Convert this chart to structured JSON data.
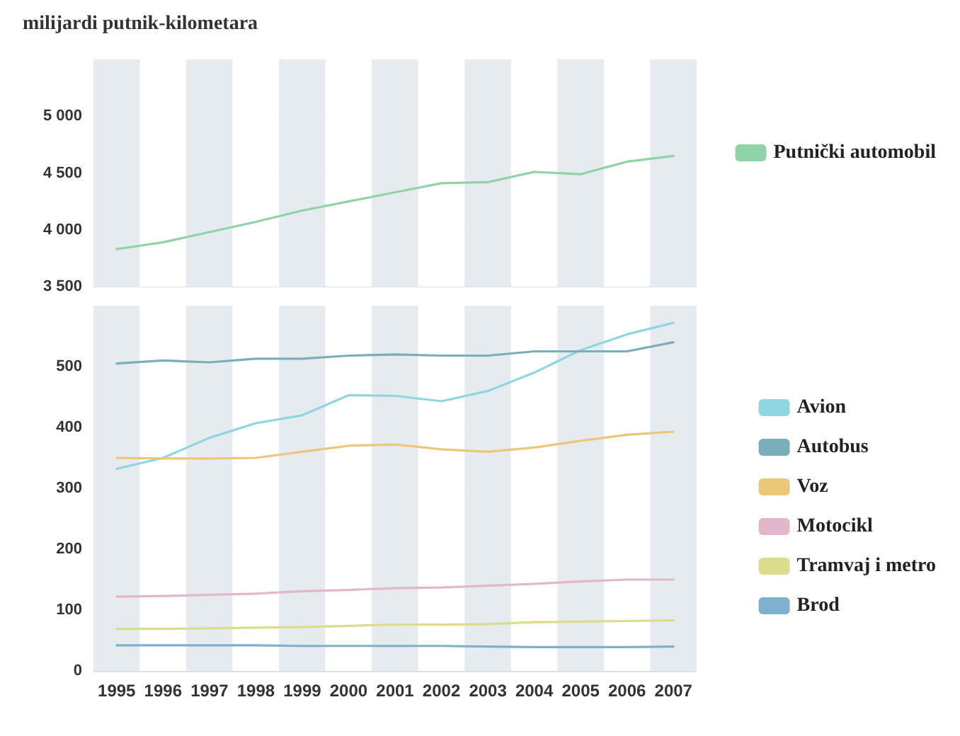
{
  "chart_data": [
    {
      "type": "line",
      "ylabel": "milijardi putnik-kilometara",
      "categories": [
        "1995",
        "1996",
        "1997",
        "1998",
        "1999",
        "2000",
        "2001",
        "2002",
        "2003",
        "2004",
        "2005",
        "2006",
        "2007"
      ],
      "series": [
        {
          "name": "Putnički automobil",
          "color": "#8fd4a8",
          "values": [
            3830,
            3890,
            3980,
            4070,
            4170,
            4250,
            4330,
            4410,
            4420,
            4510,
            4490,
            4600,
            4650
          ]
        }
      ],
      "ylim": [
        3500,
        5500
      ],
      "yticks": [
        {
          "value": 3500,
          "label": "3 500"
        },
        {
          "value": 4000,
          "label": "4 000"
        },
        {
          "value": 4500,
          "label": "4 500"
        },
        {
          "value": 5000,
          "label": "5 000"
        },
        {
          "value": 5500,
          "label": null
        }
      ],
      "grid": "y",
      "legend": "right",
      "tick_labels": "y",
      "marker": "none",
      "line_style": "solid"
    },
    {
      "type": "line",
      "categories": [
        "1995",
        "1996",
        "1997",
        "1998",
        "1999",
        "2000",
        "2001",
        "2002",
        "2003",
        "2004",
        "2005",
        "2006",
        "2007"
      ],
      "series": [
        {
          "name": "Avion",
          "color": "#8fd6e0",
          "values": [
            332,
            350,
            383,
            407,
            420,
            453,
            452,
            443,
            460,
            490,
            527,
            553,
            572
          ]
        },
        {
          "name": "Autobus",
          "color": "#7aafba",
          "values": [
            505,
            510,
            507,
            513,
            513,
            518,
            520,
            518,
            518,
            525,
            525,
            525,
            540
          ]
        },
        {
          "name": "Voz",
          "color": "#ecc77a",
          "values": [
            350,
            349,
            349,
            350,
            360,
            370,
            372,
            364,
            360,
            367,
            378,
            388,
            393
          ]
        },
        {
          "name": "Motocikl",
          "color": "#e3b6cb",
          "values": [
            122,
            123,
            125,
            127,
            131,
            133,
            136,
            137,
            140,
            143,
            147,
            150,
            150
          ]
        },
        {
          "name": "Tramvaj i metro",
          "color": "#dcdc8c",
          "values": [
            69,
            69,
            70,
            71,
            72,
            74,
            76,
            76,
            77,
            80,
            81,
            82,
            83
          ]
        },
        {
          "name": "Brod",
          "color": "#7fb0cc",
          "values": [
            42,
            42,
            42,
            42,
            41,
            41,
            41,
            41,
            40,
            39,
            39,
            39,
            40
          ]
        }
      ],
      "ylim": [
        0,
        600
      ],
      "yticks": [
        0,
        100,
        200,
        300,
        400,
        500,
        {
          "value": 600,
          "label": null
        }
      ],
      "grid": "y",
      "legend": "right",
      "marker": "none",
      "line_style": "solid"
    }
  ]
}
